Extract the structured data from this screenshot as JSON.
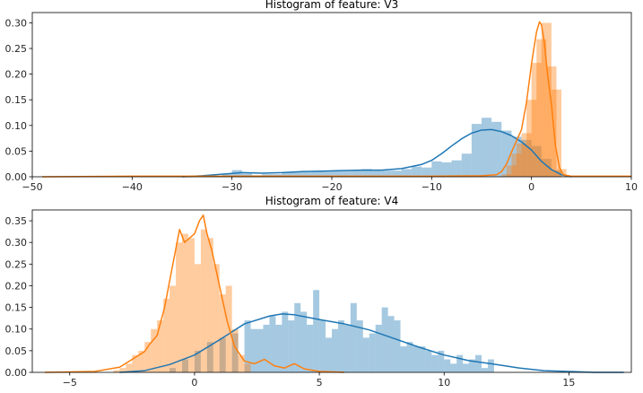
{
  "chart_data": [
    {
      "type": "histogram",
      "title": "Histogram of feature: V3",
      "xlabel": "",
      "ylabel": "",
      "xlim": [
        -50,
        10
      ],
      "ylim": [
        0,
        0.32
      ],
      "xticks": [
        -50,
        -40,
        -30,
        -20,
        -10,
        0,
        10
      ],
      "yticks": [
        0.0,
        0.05,
        0.1,
        0.15,
        0.2,
        0.25,
        0.3
      ],
      "bin_width": 1,
      "grid": false,
      "series": [
        {
          "color": "#1f77b4",
          "bins": [
            [
              -31,
              0.006
            ],
            [
              -30,
              0.013
            ],
            [
              -29,
              0.006
            ],
            [
              -28,
              0.003
            ],
            [
              -27,
              0.005
            ],
            [
              -26,
              0.005
            ],
            [
              -25,
              0.008
            ],
            [
              -24,
              0.009
            ],
            [
              -23,
              0.009
            ],
            [
              -22,
              0.01
            ],
            [
              -21,
              0.01
            ],
            [
              -20,
              0.011
            ],
            [
              -19,
              0.011
            ],
            [
              -18,
              0.012
            ],
            [
              -17,
              0.015
            ],
            [
              -16,
              0.012
            ],
            [
              -15,
              0.012
            ],
            [
              -14,
              0.012
            ],
            [
              -13,
              0.015
            ],
            [
              -12,
              0.02
            ],
            [
              -11,
              0.018
            ],
            [
              -10,
              0.03
            ],
            [
              -9,
              0.028
            ],
            [
              -8,
              0.032
            ],
            [
              -7,
              0.045
            ],
            [
              -6,
              0.103
            ],
            [
              -5,
              0.115
            ],
            [
              -4,
              0.107
            ],
            [
              -3,
              0.09
            ],
            [
              -2,
              0.078
            ],
            [
              -1,
              0.072
            ],
            [
              0,
              0.06
            ],
            [
              1,
              0.035
            ],
            [
              2,
              0.012
            ]
          ],
          "kde": [
            [
              -35,
              0.0
            ],
            [
              -33,
              0.002
            ],
            [
              -31,
              0.005
            ],
            [
              -29,
              0.008
            ],
            [
              -27,
              0.007
            ],
            [
              -25,
              0.008
            ],
            [
              -23,
              0.01
            ],
            [
              -21,
              0.011
            ],
            [
              -19,
              0.012
            ],
            [
              -17,
              0.013
            ],
            [
              -15,
              0.013
            ],
            [
              -13,
              0.016
            ],
            [
              -11,
              0.024
            ],
            [
              -10,
              0.032
            ],
            [
              -9,
              0.045
            ],
            [
              -8,
              0.06
            ],
            [
              -7,
              0.074
            ],
            [
              -6,
              0.085
            ],
            [
              -5,
              0.091
            ],
            [
              -4,
              0.092
            ],
            [
              -3,
              0.088
            ],
            [
              -2,
              0.08
            ],
            [
              -1,
              0.068
            ],
            [
              0,
              0.052
            ],
            [
              1,
              0.03
            ],
            [
              2,
              0.014
            ],
            [
              3,
              0.004
            ],
            [
              4,
              0.0
            ]
          ]
        },
        {
          "color": "#ff7f0e",
          "bins": [
            [
              -3,
              0.005
            ],
            [
              -2.5,
              0.022
            ],
            [
              -2,
              0.045
            ],
            [
              -1.5,
              0.065
            ],
            [
              -1,
              0.085
            ],
            [
              -0.5,
              0.15
            ],
            [
              0,
              0.222
            ],
            [
              0.5,
              0.268
            ],
            [
              1,
              0.3
            ],
            [
              1.5,
              0.215
            ],
            [
              2,
              0.17
            ],
            [
              2.5,
              0.015
            ]
          ],
          "kde": [
            [
              -49,
              0.0
            ],
            [
              -40,
              0.001
            ],
            [
              -30,
              0.001
            ],
            [
              -20,
              0.001
            ],
            [
              -10,
              0.001
            ],
            [
              -5,
              0.002
            ],
            [
              -3.5,
              0.004
            ],
            [
              -3,
              0.01
            ],
            [
              -2.5,
              0.025
            ],
            [
              -2,
              0.048
            ],
            [
              -1.5,
              0.07
            ],
            [
              -1,
              0.092
            ],
            [
              -0.5,
              0.145
            ],
            [
              0,
              0.22
            ],
            [
              0.5,
              0.282
            ],
            [
              0.8,
              0.302
            ],
            [
              1,
              0.296
            ],
            [
              1.3,
              0.26
            ],
            [
              1.6,
              0.2
            ],
            [
              2,
              0.14
            ],
            [
              2.4,
              0.06
            ],
            [
              2.8,
              0.018
            ],
            [
              3.2,
              0.004
            ],
            [
              4,
              0.001
            ],
            [
              10,
              0.001
            ]
          ]
        }
      ]
    },
    {
      "type": "histogram",
      "title": "Histogram of feature: V4",
      "xlabel": "",
      "ylabel": "",
      "xlim": [
        -6.5,
        17.5
      ],
      "ylim": [
        0,
        0.375
      ],
      "xticks": [
        -5,
        0,
        5,
        10,
        15
      ],
      "yticks": [
        0.0,
        0.05,
        0.1,
        0.15,
        0.2,
        0.25,
        0.3,
        0.35
      ],
      "grid": false,
      "series": [
        {
          "color": "#1f77b4",
          "bin_width": 0.25,
          "bins": [
            [
              -1,
              0.01
            ],
            [
              -0.5,
              0.03
            ],
            [
              0,
              0.05
            ],
            [
              0.5,
              0.07
            ],
            [
              1,
              0.08
            ],
            [
              1.5,
              0.09
            ],
            [
              2,
              0.12
            ],
            [
              2.25,
              0.1
            ],
            [
              2.5,
              0.1
            ],
            [
              2.75,
              0.11
            ],
            [
              3,
              0.13
            ],
            [
              3.25,
              0.11
            ],
            [
              3.5,
              0.14
            ],
            [
              3.75,
              0.12
            ],
            [
              4,
              0.16
            ],
            [
              4.25,
              0.14
            ],
            [
              4.5,
              0.11
            ],
            [
              4.75,
              0.19
            ],
            [
              5,
              0.12
            ],
            [
              5.25,
              0.08
            ],
            [
              5.5,
              0.1
            ],
            [
              5.75,
              0.12
            ],
            [
              6,
              0.11
            ],
            [
              6.25,
              0.16
            ],
            [
              6.5,
              0.12
            ],
            [
              6.75,
              0.08
            ],
            [
              7,
              0.09
            ],
            [
              7.25,
              0.11
            ],
            [
              7.5,
              0.15
            ],
            [
              7.75,
              0.13
            ],
            [
              8,
              0.12
            ],
            [
              8.25,
              0.06
            ],
            [
              8.5,
              0.07
            ],
            [
              8.75,
              0.06
            ],
            [
              9,
              0.06
            ],
            [
              9.25,
              0.05
            ],
            [
              9.5,
              0.04
            ],
            [
              9.75,
              0.05
            ],
            [
              10,
              0.03
            ],
            [
              10.25,
              0.02
            ],
            [
              10.5,
              0.04
            ],
            [
              10.75,
              0.02
            ],
            [
              11,
              0.03
            ],
            [
              11.25,
              0.04
            ],
            [
              11.5,
              0.01
            ],
            [
              11.75,
              0.03
            ]
          ],
          "kde": [
            [
              -3,
              0.0
            ],
            [
              -2,
              0.004
            ],
            [
              -1,
              0.018
            ],
            [
              0,
              0.04
            ],
            [
              1,
              0.075
            ],
            [
              2,
              0.112
            ],
            [
              3,
              0.13
            ],
            [
              3.5,
              0.135
            ],
            [
              4,
              0.133
            ],
            [
              5,
              0.122
            ],
            [
              6,
              0.112
            ],
            [
              7,
              0.098
            ],
            [
              8,
              0.078
            ],
            [
              9,
              0.058
            ],
            [
              10,
              0.04
            ],
            [
              11,
              0.027
            ],
            [
              12,
              0.019
            ],
            [
              13,
              0.01
            ],
            [
              14,
              0.004
            ],
            [
              15,
              0.002
            ],
            [
              16,
              0.0
            ],
            [
              17.2,
              0.0
            ]
          ]
        },
        {
          "color": "#ff7f0e",
          "bin_width": 0.25,
          "bins": [
            [
              -3.25,
              0.005
            ],
            [
              -3,
              0.01
            ],
            [
              -2.75,
              0.02
            ],
            [
              -2.5,
              0.04
            ],
            [
              -2.25,
              0.05
            ],
            [
              -2,
              0.07
            ],
            [
              -1.75,
              0.1
            ],
            [
              -1.5,
              0.12
            ],
            [
              -1.25,
              0.17
            ],
            [
              -1,
              0.2
            ],
            [
              -0.75,
              0.3
            ],
            [
              -0.5,
              0.32
            ],
            [
              -0.25,
              0.31
            ],
            [
              0,
              0.25
            ],
            [
              0.25,
              0.33
            ],
            [
              0.5,
              0.31
            ],
            [
              0.75,
              0.25
            ],
            [
              1,
              0.18
            ],
            [
              1.25,
              0.2
            ],
            [
              1.5,
              0.1
            ],
            [
              1.75,
              0.04
            ],
            [
              2,
              0.02
            ]
          ],
          "kde": [
            [
              -6,
              0.0
            ],
            [
              -4,
              0.002
            ],
            [
              -3,
              0.012
            ],
            [
              -2.5,
              0.03
            ],
            [
              -2,
              0.048
            ],
            [
              -1.8,
              0.065
            ],
            [
              -1.5,
              0.085
            ],
            [
              -1.2,
              0.15
            ],
            [
              -1,
              0.21
            ],
            [
              -0.8,
              0.27
            ],
            [
              -0.6,
              0.33
            ],
            [
              -0.4,
              0.3
            ],
            [
              -0.2,
              0.31
            ],
            [
              0,
              0.32
            ],
            [
              0.2,
              0.35
            ],
            [
              0.35,
              0.363
            ],
            [
              0.5,
              0.32
            ],
            [
              0.7,
              0.28
            ],
            [
              1,
              0.2
            ],
            [
              1.3,
              0.12
            ],
            [
              1.6,
              0.06
            ],
            [
              2,
              0.026
            ],
            [
              2.4,
              0.02
            ],
            [
              2.8,
              0.03
            ],
            [
              3.2,
              0.015
            ],
            [
              3.6,
              0.01
            ],
            [
              4,
              0.02
            ],
            [
              4.4,
              0.008
            ],
            [
              5,
              0.002
            ],
            [
              6,
              0.0
            ]
          ]
        }
      ]
    }
  ]
}
